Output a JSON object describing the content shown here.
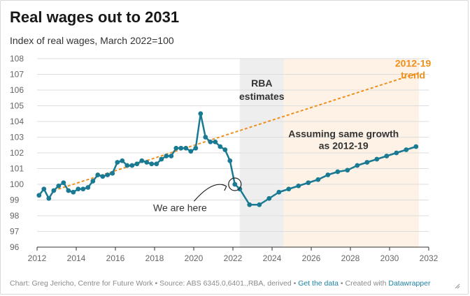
{
  "header": {
    "title": "Real wages out to 2031",
    "subtitle": "Index of real wages, March 2022=100"
  },
  "footer": {
    "text": "Chart: Greg Jericho, Centre for Future Work • Source: ABS 6345.0,6401.,RBA, derived • ",
    "link_get_data": "Get the data",
    "sep": " • Created with ",
    "link_datawrapper": "Datawrapper"
  },
  "colors": {
    "series": "#1a7a93",
    "trend": "#ef8f1c",
    "rba_band": "#eeeeee",
    "growth_band": "#fdf2e5",
    "grid": "#dddddd",
    "axis_text": "#666666"
  },
  "chart_data": {
    "type": "line",
    "xlim": [
      2012,
      2032
    ],
    "ylim": [
      96,
      108
    ],
    "x_ticks": [
      2012,
      2014,
      2016,
      2018,
      2020,
      2022,
      2024,
      2026,
      2028,
      2030,
      2032
    ],
    "y_ticks": [
      96,
      97,
      98,
      99,
      100,
      101,
      102,
      103,
      104,
      105,
      106,
      107,
      108
    ],
    "grid": true,
    "bands": [
      {
        "from": 2022.35,
        "to": 2024.6,
        "label": "RBA\nestimates",
        "color": "#eeeeee"
      },
      {
        "from": 2024.6,
        "to": 2031.5,
        "label": "",
        "color": "#fdf2e5"
      }
    ],
    "series": [
      {
        "name": "",
        "style": "solid",
        "points": [
          [
            2012.1,
            99.3
          ],
          [
            2012.35,
            99.7
          ],
          [
            2012.6,
            99.1
          ],
          [
            2012.85,
            99.6
          ],
          [
            2013.1,
            99.9
          ],
          [
            2013.35,
            100.1
          ],
          [
            2013.6,
            99.6
          ],
          [
            2013.85,
            99.5
          ],
          [
            2014.1,
            99.7
          ],
          [
            2014.35,
            99.7
          ],
          [
            2014.6,
            99.8
          ],
          [
            2014.85,
            100.2
          ],
          [
            2015.1,
            100.6
          ],
          [
            2015.35,
            100.5
          ],
          [
            2015.6,
            100.6
          ],
          [
            2015.85,
            100.7
          ],
          [
            2016.1,
            101.4
          ],
          [
            2016.35,
            101.5
          ],
          [
            2016.6,
            101.2
          ],
          [
            2016.85,
            101.2
          ],
          [
            2017.1,
            101.3
          ],
          [
            2017.35,
            101.5
          ],
          [
            2017.6,
            101.4
          ],
          [
            2017.85,
            101.3
          ],
          [
            2018.1,
            101.3
          ],
          [
            2018.35,
            101.6
          ],
          [
            2018.6,
            101.8
          ],
          [
            2018.85,
            101.8
          ],
          [
            2019.1,
            102.3
          ],
          [
            2019.35,
            102.3
          ],
          [
            2019.6,
            102.3
          ],
          [
            2019.85,
            102.1
          ],
          [
            2020.1,
            102.3
          ],
          [
            2020.35,
            104.5
          ],
          [
            2020.6,
            103.0
          ],
          [
            2020.85,
            102.7
          ],
          [
            2021.1,
            102.7
          ],
          [
            2021.35,
            102.4
          ],
          [
            2021.6,
            102.2
          ],
          [
            2021.85,
            101.5
          ],
          [
            2022.1,
            100.0
          ],
          [
            2022.35,
            99.7
          ],
          [
            2022.85,
            98.7
          ],
          [
            2023.35,
            98.7
          ],
          [
            2023.85,
            99.1
          ],
          [
            2024.35,
            99.5
          ],
          [
            2024.85,
            99.7
          ],
          [
            2025.35,
            99.9
          ],
          [
            2025.85,
            100.1
          ],
          [
            2026.35,
            100.3
          ],
          [
            2026.85,
            100.6
          ],
          [
            2027.35,
            100.8
          ],
          [
            2027.85,
            100.9
          ],
          [
            2028.35,
            101.2
          ],
          [
            2028.85,
            101.4
          ],
          [
            2029.35,
            101.6
          ],
          [
            2029.85,
            101.8
          ],
          [
            2030.35,
            102.0
          ],
          [
            2030.85,
            102.2
          ],
          [
            2031.35,
            102.4
          ]
        ]
      },
      {
        "name": "2012-19 trend",
        "style": "dashed",
        "points": [
          [
            2012.85,
            99.6
          ],
          [
            2031.5,
            107.1
          ]
        ]
      }
    ],
    "annotations": [
      {
        "text": "2012-19\ntrend",
        "x": 2031.2,
        "y": 107.5,
        "color": "#ef8f1c",
        "bold": true
      },
      {
        "text": "Assuming same growth\nas 2012-19",
        "x": 2027.65,
        "y": 103.0,
        "color": "#333333",
        "bold": true
      },
      {
        "text": "We are here",
        "x": 2019.3,
        "y": 98.3,
        "color": "#333333",
        "bold": false,
        "target": [
          2022.1,
          100.0
        ]
      }
    ]
  }
}
